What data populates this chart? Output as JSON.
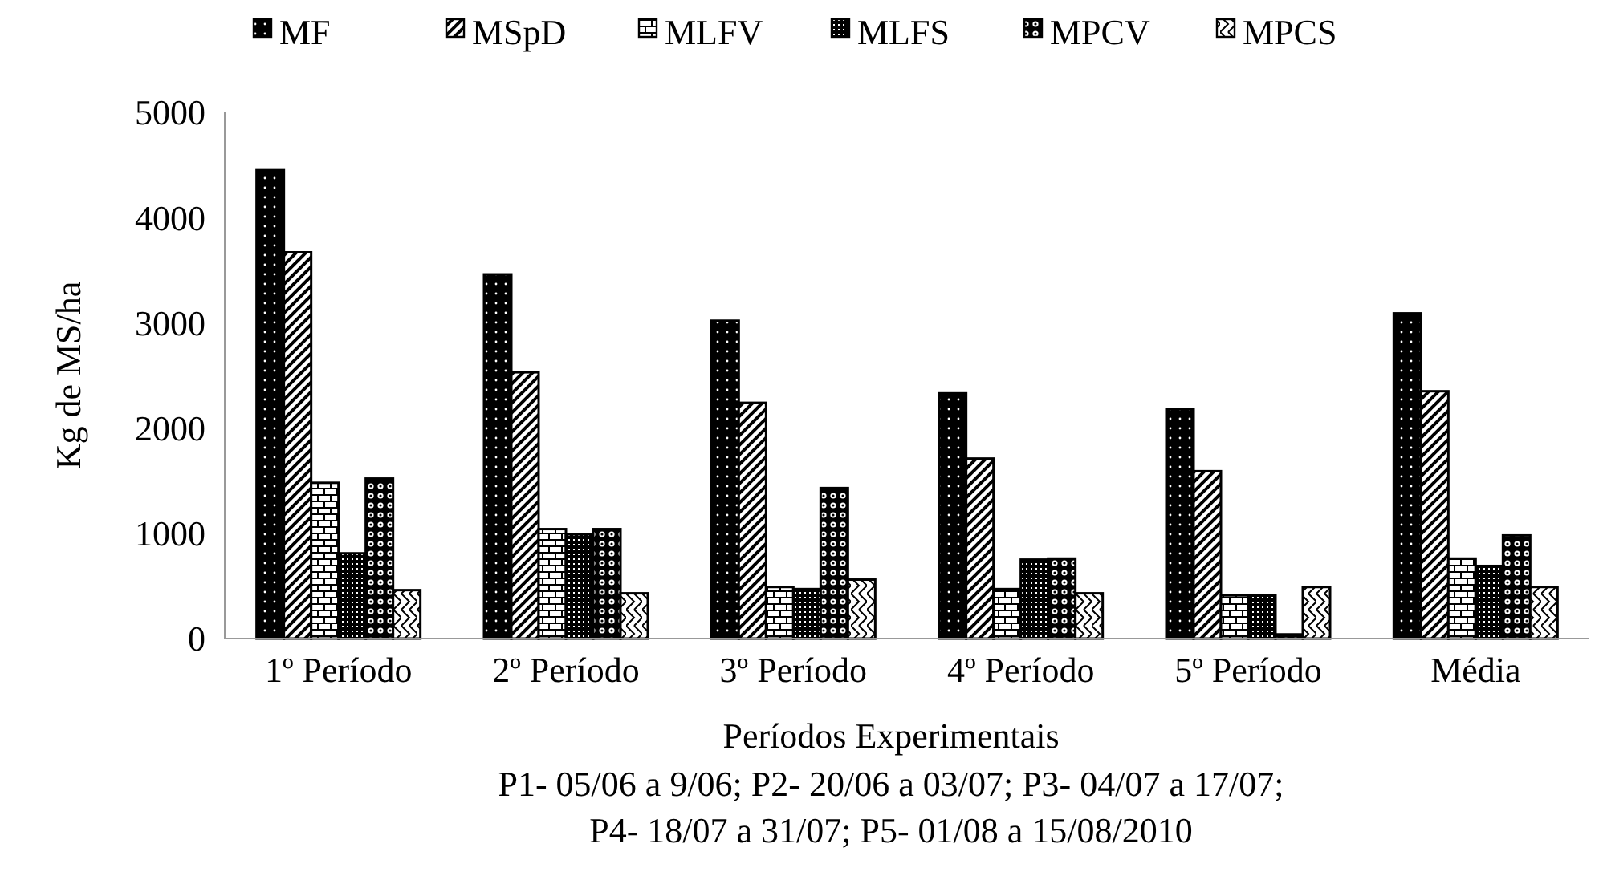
{
  "chart_data": {
    "type": "bar",
    "ylabel": "Kg de MS/ha",
    "xlabel": "Períodos Experimentais",
    "categories": [
      "1º Período",
      "2º Período",
      "3º Período",
      "4º Período",
      "5º Período",
      "Média"
    ],
    "series": [
      {
        "name": "MF",
        "color": "#000000",
        "values": [
          4450,
          3460,
          3020,
          2330,
          2180,
          3090
        ]
      },
      {
        "name": "MSpD",
        "color": "#000000",
        "values": [
          3670,
          2530,
          2240,
          1710,
          1590,
          2350
        ]
      },
      {
        "name": "MLFV",
        "color": "#000000",
        "values": [
          1480,
          1040,
          490,
          470,
          410,
          760
        ]
      },
      {
        "name": "MLFS",
        "color": "#000000",
        "values": [
          810,
          990,
          470,
          750,
          410,
          690
        ]
      },
      {
        "name": "MPCV",
        "color": "#000000",
        "values": [
          1520,
          1040,
          1430,
          760,
          40,
          980
        ]
      },
      {
        "name": "MPCS",
        "color": "#000000",
        "values": [
          460,
          430,
          560,
          430,
          490,
          490
        ]
      }
    ],
    "ylim": [
      0,
      5000
    ],
    "yticks": [
      0,
      1000,
      2000,
      3000,
      4000,
      5000
    ],
    "grid": false,
    "legend": "top",
    "annotations": [
      "P1- 05/06 a 9/06; P2- 20/06 a 03/07; P3- 04/07 a 17/07;",
      "P4- 18/07 a 31/07; P5- 01/08 a 15/08/2010"
    ]
  }
}
